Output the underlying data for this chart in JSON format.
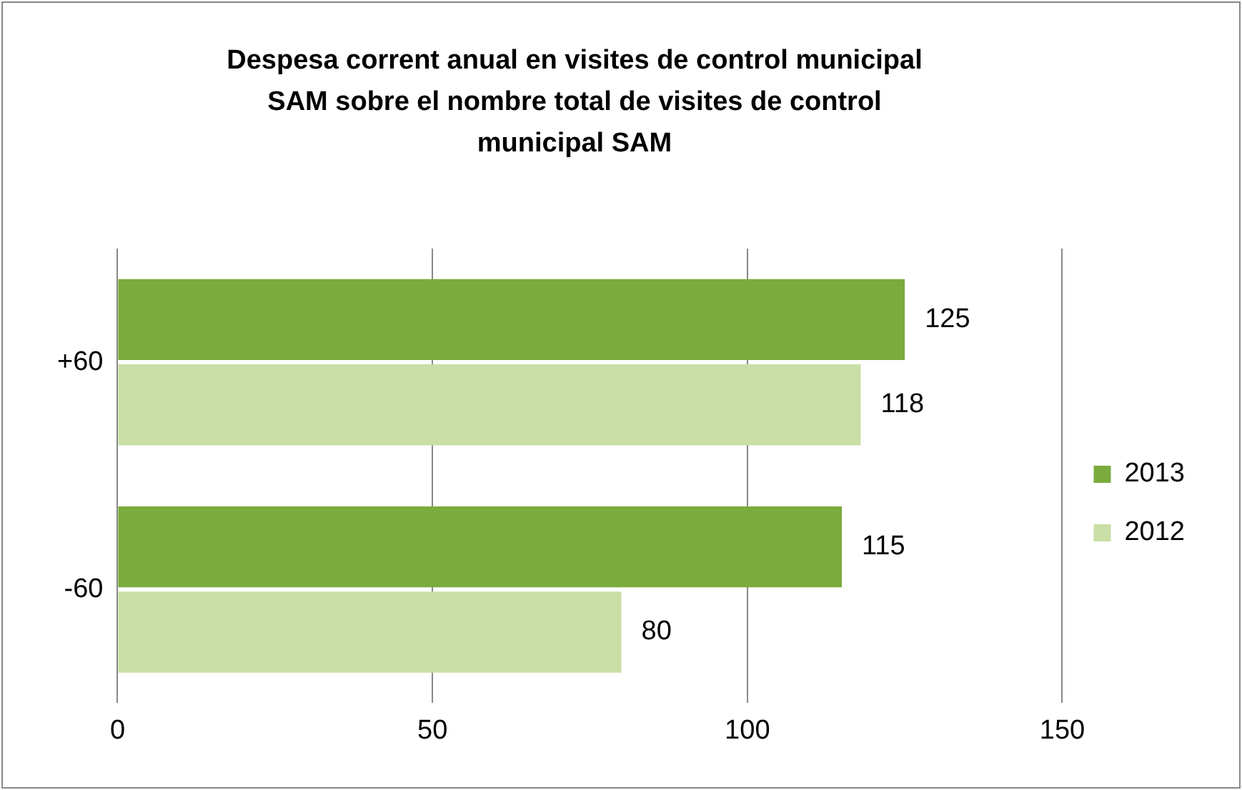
{
  "chart_data": {
    "type": "bar",
    "orientation": "horizontal",
    "title": "Despesa corrent anual en visites de control  municipal SAM sobre el nombre total de visites de control municipal SAM",
    "categories": [
      "+60",
      "-60"
    ],
    "series": [
      {
        "name": "2013",
        "color": "#7aab3c",
        "values": [
          125,
          115
        ]
      },
      {
        "name": "2012",
        "color": "#c9dfa6",
        "values": [
          118,
          80
        ]
      }
    ],
    "xlim": [
      0,
      150
    ],
    "xticks": [
      0,
      50,
      100,
      150
    ],
    "grid": "x",
    "legend": "right",
    "data_labels": true
  }
}
